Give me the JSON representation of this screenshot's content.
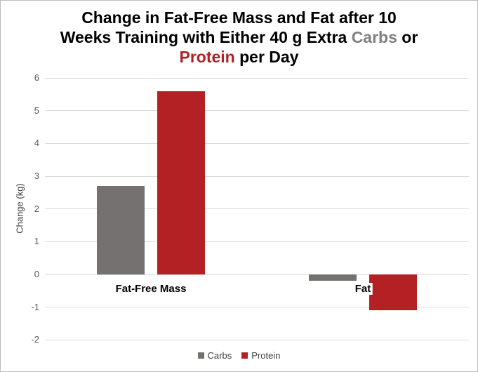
{
  "chart_data": {
    "type": "bar",
    "title_plain": "Change in Fat-Free Mass and Fat after 10 Weeks Training with Either 40 g Extra Carbs or Protein per Day",
    "title_lines": [
      [
        {
          "text": "Change in Fat-Free Mass and Fat after 10",
          "color": "#000000"
        }
      ],
      [
        {
          "text": "Weeks Training with Either 40 g Extra ",
          "color": "#000000"
        },
        {
          "text": "Carbs",
          "color": "#808080"
        },
        {
          "text": " or",
          "color": "#000000"
        }
      ],
      [
        {
          "text": "Protein",
          "color": "#b22025"
        },
        {
          "text": " per Day",
          "color": "#000000"
        }
      ]
    ],
    "categories": [
      "Fat-Free Mass",
      "Fat"
    ],
    "series": [
      {
        "name": "Carbs",
        "color": "#757171",
        "values": [
          2.7,
          -0.2
        ]
      },
      {
        "name": "Protein",
        "color": "#b42125",
        "values": [
          5.6,
          -1.1
        ]
      }
    ],
    "xlabel": "",
    "ylabel": "Change (kg)",
    "ylim": [
      -2,
      6
    ],
    "yticks": [
      6,
      5,
      4,
      3,
      2,
      1,
      0,
      -1,
      -2
    ],
    "grid": true,
    "legend_position": "bottom-center",
    "colors": {
      "gridline": "#d9d9d9",
      "tick_label": "#595959",
      "axis_title": "#404040",
      "legend_text": "#404040",
      "chart_border": "#bdbdbd",
      "background": "#ffffff"
    }
  }
}
